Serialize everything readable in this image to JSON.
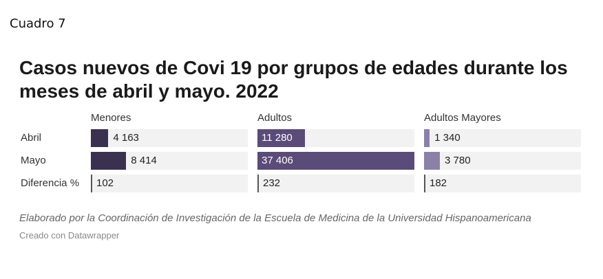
{
  "caption": "Cuadro 7",
  "notes": "Elaborado por la Coordinación de Investigación de la Escuela de Medicina de la Universidad Hispanoamericana",
  "credit": "Creado con Datawrapper",
  "chart_data": {
    "type": "bar",
    "title": "Casos nuevos de Covi 19 por grupos de edades durante los meses de abril y mayo. 2022",
    "categories": [
      "Abril",
      "Mayo",
      "Diferencia %"
    ],
    "series": [
      {
        "name": "Menores",
        "labels": [
          "4 163",
          "8 414",
          "102"
        ],
        "values": [
          4163,
          8414,
          102
        ],
        "color": "#3a3150"
      },
      {
        "name": "Adultos",
        "labels": [
          "11 280",
          "37 406",
          "232"
        ],
        "values": [
          11280,
          37406,
          232
        ],
        "color": "#5a4b78"
      },
      {
        "name": "Adultos Mayores",
        "labels": [
          "1 340",
          "3 780",
          "182"
        ],
        "values": [
          1340,
          3780,
          182
        ],
        "color": "#8b80a8"
      }
    ],
    "xlim": [
      0,
      37406
    ],
    "background_color": "#f2f2f2"
  }
}
